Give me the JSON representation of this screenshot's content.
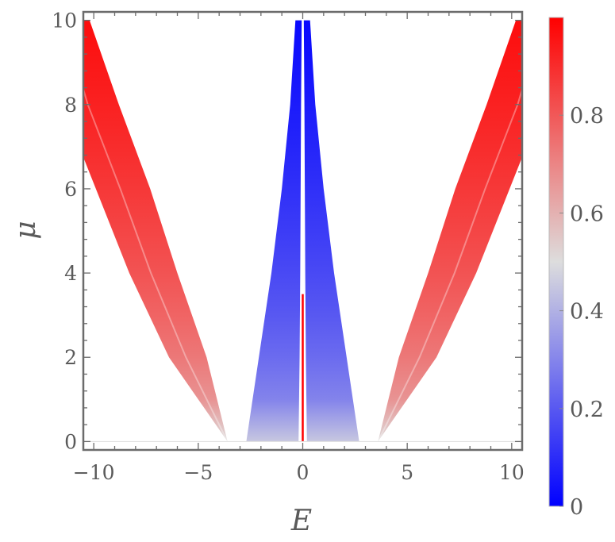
{
  "chart_data": {
    "type": "heatmap",
    "title": "",
    "xlabel": "E",
    "ylabel": "μ",
    "xlim": [
      -10.5,
      10.5
    ],
    "ylim": [
      -0.2,
      10.2
    ],
    "x_ticks": [
      -10,
      -5,
      0,
      5,
      10
    ],
    "x_tick_labels": [
      "−10",
      "−5",
      "0",
      "5",
      "10"
    ],
    "y_ticks": [
      0,
      2,
      4,
      6,
      8,
      10
    ],
    "y_tick_labels": [
      "0",
      "2",
      "4",
      "6",
      "8",
      "10"
    ],
    "colorbar": {
      "range": [
        0,
        1
      ],
      "ticks": [
        0,
        0.2,
        0.4,
        0.6,
        0.8
      ],
      "tick_labels": [
        "0",
        "0.2",
        "0.4",
        "0.6",
        "0.8"
      ],
      "color_low": "#0000ff",
      "color_mid": "#dddddd",
      "color_high": "#ff0000"
    },
    "bands": [
      {
        "name": "outer-left",
        "value_low_mu": 0.5,
        "value_high_mu": 0.97,
        "inner_edge": [
          [
            -3.6,
            0
          ],
          [
            -4.6,
            2
          ],
          [
            -6.0,
            4
          ],
          [
            -7.3,
            6
          ],
          [
            -8.8,
            8
          ],
          [
            -10.2,
            10
          ]
        ],
        "outer_edge": [
          [
            -3.6,
            0
          ],
          [
            -6.4,
            2
          ],
          [
            -8.3,
            4
          ],
          [
            -9.9,
            6
          ],
          [
            -11.5,
            8
          ],
          [
            -12.5,
            10
          ]
        ]
      },
      {
        "name": "outer-right",
        "value_low_mu": 0.5,
        "value_high_mu": 0.97,
        "inner_edge": [
          [
            3.6,
            0
          ],
          [
            4.6,
            2
          ],
          [
            6.0,
            4
          ],
          [
            7.3,
            6
          ],
          [
            8.8,
            8
          ],
          [
            10.2,
            10
          ]
        ],
        "outer_edge": [
          [
            3.6,
            0
          ],
          [
            6.4,
            2
          ],
          [
            8.3,
            4
          ],
          [
            9.9,
            6
          ],
          [
            11.5,
            8
          ],
          [
            12.5,
            10
          ]
        ]
      },
      {
        "name": "inner-left",
        "value_low_mu": 0.45,
        "value_high_mu": 0.02,
        "inner_edge": [
          [
            -0.2,
            0
          ],
          [
            -0.15,
            2
          ],
          [
            -0.12,
            4
          ],
          [
            -0.1,
            6
          ],
          [
            -0.08,
            8
          ],
          [
            -0.05,
            10
          ]
        ],
        "outer_edge": [
          [
            -2.7,
            0
          ],
          [
            -2.1,
            2
          ],
          [
            -1.5,
            4
          ],
          [
            -1.0,
            6
          ],
          [
            -0.6,
            8
          ],
          [
            -0.35,
            10
          ]
        ]
      },
      {
        "name": "inner-right",
        "value_low_mu": 0.45,
        "value_high_mu": 0.02,
        "inner_edge": [
          [
            0.2,
            0
          ],
          [
            0.15,
            2
          ],
          [
            0.12,
            4
          ],
          [
            0.1,
            6
          ],
          [
            0.08,
            8
          ],
          [
            0.05,
            10
          ]
        ],
        "outer_edge": [
          [
            2.7,
            0
          ],
          [
            2.1,
            2
          ],
          [
            1.5,
            4
          ],
          [
            1.0,
            6
          ],
          [
            0.6,
            8
          ],
          [
            0.35,
            10
          ]
        ]
      }
    ],
    "center_line": {
      "x": 0,
      "y_from": 0,
      "y_to": 3.5,
      "value": 1.0
    }
  }
}
